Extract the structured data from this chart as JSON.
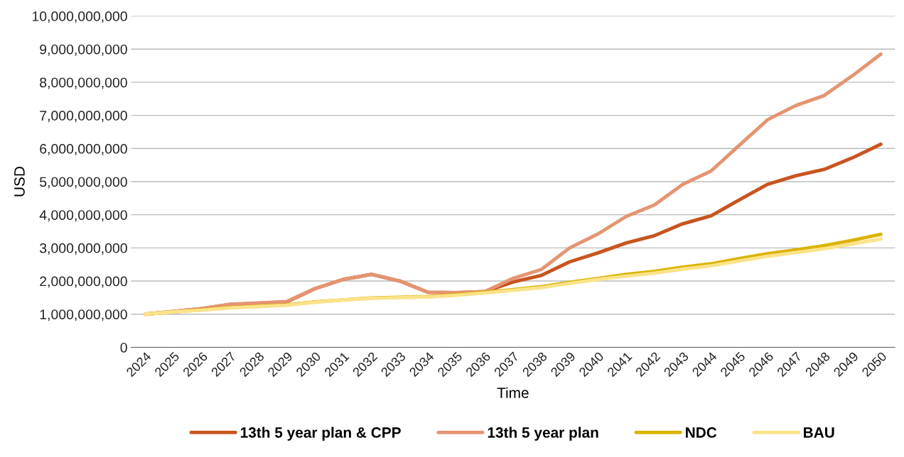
{
  "chart_data": {
    "type": "line",
    "xlabel": "Time",
    "ylabel": "USD",
    "categories": [
      "2024",
      "2025",
      "2026",
      "2027",
      "2028",
      "2029",
      "2030",
      "2031",
      "2032",
      "2033",
      "2034",
      "2035",
      "2036",
      "2037",
      "2038",
      "2039",
      "2040",
      "2041",
      "2042",
      "2043",
      "2044",
      "2045",
      "2046",
      "2047",
      "2048",
      "2049",
      "2050"
    ],
    "series": [
      {
        "name": "13th 5 year plan & CPP",
        "color": "#c8541f",
        "values": [
          1000000000,
          1080000000,
          1170000000,
          1290000000,
          1330000000,
          1370000000,
          1770000000,
          2050000000,
          2200000000,
          2000000000,
          1660000000,
          1650000000,
          1680000000,
          1970000000,
          2170000000,
          2580000000,
          2850000000,
          3150000000,
          3370000000,
          3730000000,
          3970000000,
          4450000000,
          4920000000,
          5180000000,
          5370000000,
          5720000000,
          6130000000
        ]
      },
      {
        "name": "13th 5 year plan",
        "color": "#e59472",
        "values": [
          1000000000,
          1080000000,
          1170000000,
          1300000000,
          1340000000,
          1380000000,
          1770000000,
          2050000000,
          2200000000,
          2000000000,
          1660000000,
          1650000000,
          1680000000,
          2080000000,
          2350000000,
          3000000000,
          3420000000,
          3950000000,
          4300000000,
          4920000000,
          5320000000,
          6100000000,
          6870000000,
          7300000000,
          7600000000,
          8200000000,
          8850000000
        ]
      },
      {
        "name": "NDC",
        "color": "#dbb300",
        "values": [
          1000000000,
          1070000000,
          1130000000,
          1200000000,
          1240000000,
          1280000000,
          1370000000,
          1430000000,
          1490000000,
          1510000000,
          1530000000,
          1590000000,
          1660000000,
          1740000000,
          1830000000,
          1960000000,
          2080000000,
          2200000000,
          2290000000,
          2420000000,
          2520000000,
          2680000000,
          2830000000,
          2940000000,
          3070000000,
          3230000000,
          3410000000
        ]
      },
      {
        "name": "BAU",
        "color": "#fbe38a",
        "values": [
          1000000000,
          1070000000,
          1120000000,
          1190000000,
          1230000000,
          1270000000,
          1360000000,
          1430000000,
          1480000000,
          1500000000,
          1520000000,
          1570000000,
          1640000000,
          1720000000,
          1800000000,
          1930000000,
          2050000000,
          2150000000,
          2240000000,
          2360000000,
          2460000000,
          2610000000,
          2750000000,
          2860000000,
          2980000000,
          3120000000,
          3270000000
        ]
      }
    ],
    "ylim": [
      0,
      10000000000
    ],
    "yticks": [
      0,
      {
        "value": 1000000000,
        "label": "1,000,000,000"
      },
      {
        "value": 2000000000,
        "label": "2,000,000,000"
      },
      {
        "value": 3000000000,
        "label": "3,000,000,000"
      },
      {
        "value": 4000000000,
        "label": "4,000,000,000"
      },
      {
        "value": 5000000000,
        "label": "5,000,000,000"
      },
      {
        "value": 6000000000,
        "label": "6,000,000,000"
      },
      {
        "value": 7000000000,
        "label": "7,000,000,000"
      },
      {
        "value": 8000000000,
        "label": "8,000,000,000"
      },
      {
        "value": 9000000000,
        "label": "9,000,000,000"
      },
      {
        "value": 10000000000,
        "label": "10,000,000,000"
      }
    ],
    "grid": "y",
    "legend": "bottom",
    "marker": "none",
    "line_style": "solid"
  }
}
